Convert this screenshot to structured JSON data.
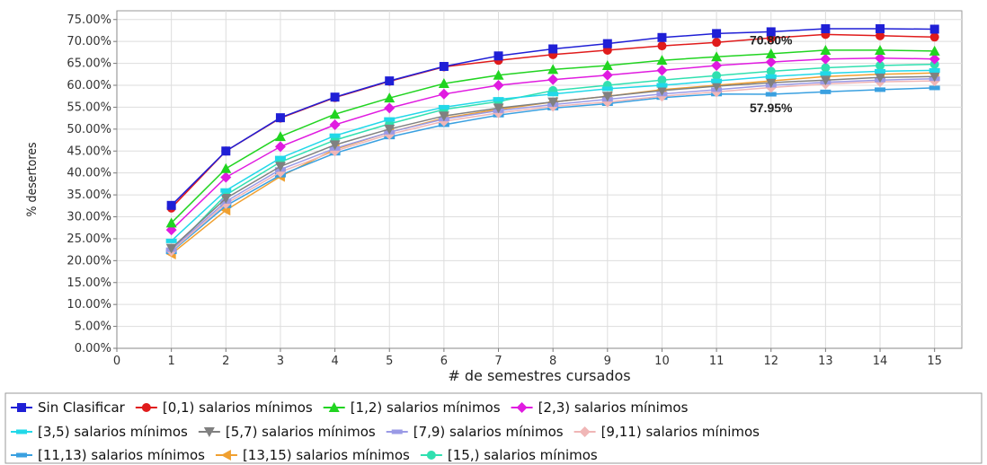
{
  "chart_data": {
    "type": "line",
    "xlabel": "# de semestres cursados",
    "ylabel": "% desertores",
    "xlim": [
      0,
      15.5
    ],
    "ylim": [
      0,
      0.77
    ],
    "x_ticks": [
      "0",
      "1",
      "2",
      "3",
      "4",
      "5",
      "6",
      "7",
      "8",
      "9",
      "10",
      "11",
      "12",
      "13",
      "14",
      "15"
    ],
    "y_ticks": [
      "0.00%",
      "5.00%",
      "10.00%",
      "15.00%",
      "20.00%",
      "25.00%",
      "30.00%",
      "35.00%",
      "40.00%",
      "45.00%",
      "50.00%",
      "55.00%",
      "60.00%",
      "65.00%",
      "70.00%",
      "75.00%"
    ],
    "grid": true,
    "legend_position": "bottom",
    "x": [
      1,
      2,
      3,
      4,
      5,
      6,
      7,
      8,
      9,
      10,
      11,
      12,
      13,
      14,
      15
    ],
    "series": [
      {
        "name": "Sin Clasificar",
        "color": "#1f1fd6",
        "marker": "square",
        "values": [
          0.326,
          0.45,
          0.526,
          0.573,
          0.61,
          0.643,
          0.667,
          0.683,
          0.695,
          0.709,
          0.718,
          0.722,
          0.729,
          0.729,
          0.728
        ]
      },
      {
        "name": "[0,1) salarios mínimos",
        "color": "#e01b1b",
        "marker": "circle",
        "values": [
          0.32,
          0.45,
          0.525,
          0.572,
          0.609,
          0.642,
          0.657,
          0.67,
          0.68,
          0.69,
          0.698,
          0.708,
          0.716,
          0.713,
          0.71
        ]
      },
      {
        "name": "[1,2) salarios mínimos",
        "color": "#21d421",
        "marker": "triangle-up",
        "values": [
          0.286,
          0.41,
          0.483,
          0.534,
          0.571,
          0.604,
          0.623,
          0.636,
          0.645,
          0.657,
          0.665,
          0.672,
          0.68,
          0.68,
          0.678
        ]
      },
      {
        "name": "[2,3) salarios mínimos",
        "color": "#e01be0",
        "marker": "diamond",
        "values": [
          0.27,
          0.39,
          0.46,
          0.51,
          0.548,
          0.58,
          0.6,
          0.613,
          0.623,
          0.634,
          0.645,
          0.653,
          0.66,
          0.662,
          0.66
        ]
      },
      {
        "name": "[3,5) salarios mínimos",
        "color": "#22d8e8",
        "marker": "hbar",
        "values": [
          0.245,
          0.36,
          0.434,
          0.485,
          0.522,
          0.55,
          0.568,
          0.58,
          0.592,
          0.6,
          0.61,
          0.62,
          0.627,
          0.632,
          0.634
        ]
      },
      {
        "name": "[5,7) salarios mínimos",
        "color": "#808080",
        "marker": "triangle-down",
        "values": [
          0.228,
          0.342,
          0.415,
          0.464,
          0.5,
          0.53,
          0.548,
          0.562,
          0.575,
          0.588,
          0.598,
          0.606,
          0.612,
          0.618,
          0.62
        ]
      },
      {
        "name": "[7,9) salarios mínimos",
        "color": "#9a9ae6",
        "marker": "hbar",
        "values": [
          0.225,
          0.335,
          0.408,
          0.456,
          0.493,
          0.523,
          0.542,
          0.556,
          0.568,
          0.58,
          0.59,
          0.6,
          0.607,
          0.612,
          0.615
        ]
      },
      {
        "name": "[9,11) salarios mínimos",
        "color": "#f0b6b6",
        "marker": "diamond",
        "values": [
          0.222,
          0.33,
          0.402,
          0.45,
          0.488,
          0.518,
          0.537,
          0.552,
          0.562,
          0.575,
          0.585,
          0.595,
          0.603,
          0.608,
          0.61
        ]
      },
      {
        "name": "[11,13) salarios mínimos",
        "color": "#3aa0e0",
        "marker": "hbar",
        "values": [
          0.22,
          0.325,
          0.395,
          0.445,
          0.482,
          0.51,
          0.532,
          0.548,
          0.558,
          0.572,
          0.58,
          0.5795,
          0.585,
          0.59,
          0.594
        ]
      },
      {
        "name": "[13,15) salarios mínimos",
        "color": "#f0a030",
        "marker": "triangle-left",
        "values": [
          0.215,
          0.315,
          0.392,
          0.454,
          0.493,
          0.525,
          0.545,
          0.562,
          0.575,
          0.59,
          0.6,
          0.61,
          0.62,
          0.625,
          0.628
        ]
      },
      {
        "name": "[15,) salarios mínimos",
        "color": "#30e0b0",
        "marker": "circle",
        "values": [
          0.222,
          0.35,
          0.425,
          0.475,
          0.512,
          0.545,
          0.563,
          0.588,
          0.6,
          0.612,
          0.622,
          0.632,
          0.64,
          0.645,
          0.648
        ]
      }
    ],
    "annotations": [
      {
        "text": "70.80%",
        "x": 12,
        "y": 0.708
      },
      {
        "text": "57.95%",
        "x": 12,
        "y": 0.5795
      }
    ]
  }
}
